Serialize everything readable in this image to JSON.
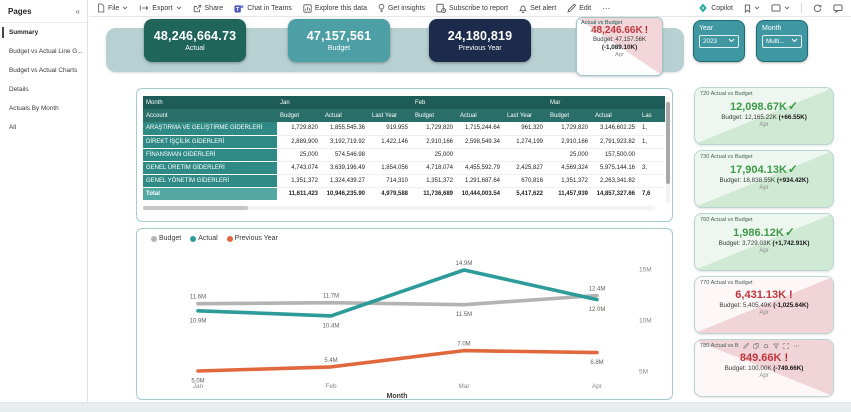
{
  "sidebar": {
    "title": "Pages",
    "collapse_icon": "«",
    "items": [
      {
        "label": "Summary",
        "active": true
      },
      {
        "label": "Budget vs Actual Line G...",
        "active": false
      },
      {
        "label": "Budget vs Actual Charts",
        "active": false
      },
      {
        "label": "Details",
        "active": false
      },
      {
        "label": "Actuals By Month",
        "active": false
      },
      {
        "label": "All",
        "active": false
      }
    ]
  },
  "toolbar": {
    "left": [
      {
        "name": "file",
        "label": "File",
        "icon": "doc",
        "chevron": true
      },
      {
        "name": "export",
        "label": "Export",
        "icon": "export",
        "chevron": true
      },
      {
        "name": "share",
        "label": "Share",
        "icon": "share",
        "chevron": false
      },
      {
        "name": "chat-in-teams",
        "label": "Chat in Teams",
        "icon": "teams",
        "chevron": false
      },
      {
        "name": "explore-this-data",
        "label": "Explore this data",
        "icon": "explore",
        "chevron": false
      },
      {
        "name": "get-insights",
        "label": "Get insights",
        "icon": "bulb",
        "chevron": false
      },
      {
        "name": "subscribe-to-report",
        "label": "Subscribe to report",
        "icon": "subscribe",
        "chevron": false
      },
      {
        "name": "set-alert",
        "label": "Set alert",
        "icon": "bell",
        "chevron": false
      },
      {
        "name": "edit",
        "label": "Edit",
        "icon": "pencil",
        "chevron": false
      },
      {
        "name": "more-options",
        "label": "⋯",
        "icon": "",
        "chevron": false
      }
    ],
    "copilot_label": "Copilot"
  },
  "kpis": [
    {
      "value": "48,246,664.73",
      "label": "Actual",
      "color": "#20655a"
    },
    {
      "value": "47,157,561",
      "label": "Budget",
      "color": "#4d9fa6"
    },
    {
      "value": "24,180,819",
      "label": "Previous Year",
      "color": "#1c2b4c"
    }
  ],
  "summary_card": {
    "title": "Actual vs Budget",
    "value": "48,246.66K",
    "status": "!",
    "budget": "Budget: 47,157.56K",
    "delta": "(-1,089.10K)",
    "period": "Apr"
  },
  "slicers": [
    {
      "label": "Year",
      "value": "2023"
    },
    {
      "label": "Month",
      "value": "Multi..."
    }
  ],
  "matrix": {
    "corner_top": "Month",
    "corner_bottom": "Account",
    "month_groups": [
      "Jan",
      "Feb",
      "Mar"
    ],
    "value_headers": [
      "Budget",
      "Actual",
      "Last Year"
    ],
    "partial_header": "Las",
    "rows": [
      {
        "account": "ARAŞTIRMA VE GELİŞTİRME GİDERLERİ",
        "cells": [
          "1,729,820",
          "1,855,545.36",
          "919,955",
          "1,729,820",
          "1,715,244.64",
          "961,320",
          "1,729,820",
          "3,146,602.25"
        ],
        "partial": "1,"
      },
      {
        "account": "DİREKT İŞÇİLİK GİDERLERİ",
        "cells": [
          "2,889,900",
          "3,192,719.92",
          "1,422,146",
          "2,910,166",
          "2,598,549.34",
          "1,274,199",
          "2,910,166",
          "2,791,923.82"
        ],
        "partial": "1,"
      },
      {
        "account": "FİNANSMAN GİDERLERİ",
        "cells": [
          "25,000",
          "574,546.98",
          "",
          "25,000",
          "",
          "",
          "25,000",
          "157,500.00"
        ],
        "partial": ""
      },
      {
        "account": "GENEL ÜRETİM GİDERLERİ",
        "cells": [
          "4,743,074",
          "3,639,196.49",
          "1,854,056",
          "4,718,074",
          "4,455,592.79",
          "2,425,827",
          "4,569,324",
          "5,975,144.16"
        ],
        "partial": "3,"
      },
      {
        "account": "GENEL YÖNETİM GİDERLERİ",
        "cells": [
          "1,351,372",
          "1,324,439.27",
          "714,310",
          "1,351,372",
          "1,291,687.64",
          "670,816",
          "1,351,372",
          "2,263,341.82"
        ],
        "partial": ""
      }
    ],
    "total": {
      "account": "Total",
      "cells": [
        "11,611,423",
        "10,946,235.90",
        "4,979,588",
        "11,736,689",
        "10,444,003.54",
        "5,417,622",
        "11,457,939",
        "14,857,327.66"
      ],
      "partial": "7,6"
    }
  },
  "chart_data": {
    "type": "line",
    "x": [
      "Jan",
      "Feb",
      "Mar",
      "Apr"
    ],
    "series": [
      {
        "name": "Budget",
        "color": "#b3b3b3",
        "values": [
          11.6,
          11.7,
          11.5,
          12.4
        ],
        "labels": [
          "11.6M",
          "11.7M",
          "11.5M",
          "12.4M"
        ]
      },
      {
        "name": "Actual",
        "color": "#2e9b9b",
        "values": [
          10.9,
          10.4,
          14.9,
          12.0
        ],
        "labels": [
          "10.9M",
          "10.4M",
          "14.9M",
          "12.0M"
        ]
      },
      {
        "name": "Previous Year",
        "color": "#e0683c",
        "values": [
          5.0,
          5.4,
          7.0,
          6.8
        ],
        "labels": [
          "5.0M",
          "5.4M",
          "7.0M",
          "6.8M"
        ]
      }
    ],
    "xlabel": "Month",
    "ylabel": "",
    "y_ticks": [
      "5M",
      "10M",
      "15M"
    ],
    "ylim": [
      3,
      16.5
    ],
    "unit": "M",
    "legend_position": "top-left",
    "y_axis_side": "right",
    "grid": false
  },
  "account_cards": [
    {
      "title": "720 Actual vs Budget",
      "value": "12,098.67K",
      "status": "check",
      "budget": "Budget: 12,165.22K",
      "delta": "(+66.55K)",
      "period": "Apr",
      "tone": "green"
    },
    {
      "title": "730 Actual vs Budget",
      "value": "17,904.13K",
      "status": "check",
      "budget": "Budget: 18,838.55K",
      "delta": "(+934.42K)",
      "period": "Apr",
      "tone": "green"
    },
    {
      "title": "760 Actual vs Budget",
      "value": "1,986.12K",
      "status": "check",
      "budget": "Budget: 3,729.03K",
      "delta": "(+1,742.91K)",
      "period": "Apr",
      "tone": "green"
    },
    {
      "title": "770 Actual vs Budget",
      "value": "6,431.13K",
      "status": "exclaim",
      "budget": "Budget: 5,405.49K",
      "delta": "(-1,025.64K)",
      "period": "Apr",
      "tone": "red"
    },
    {
      "title": "780 Actual vs B",
      "value": "849.66K",
      "status": "exclaim",
      "budget": "Budget: 100.00K",
      "delta": "(-749.66K)",
      "period": "Apr",
      "tone": "red",
      "hover_icons": [
        "edit",
        "copy",
        "alert",
        "filter",
        "focus",
        "more"
      ]
    }
  ],
  "colors": {
    "ribbon": "#b7d1d2",
    "positive": "#3d9b49",
    "negative": "#c4333b",
    "slicer": "#3f98a1",
    "table_header_dark": "#1e5c57",
    "table_header": "#296e69",
    "table_rowlabel": "#2f8a85",
    "table_total": "#54a8a4"
  }
}
